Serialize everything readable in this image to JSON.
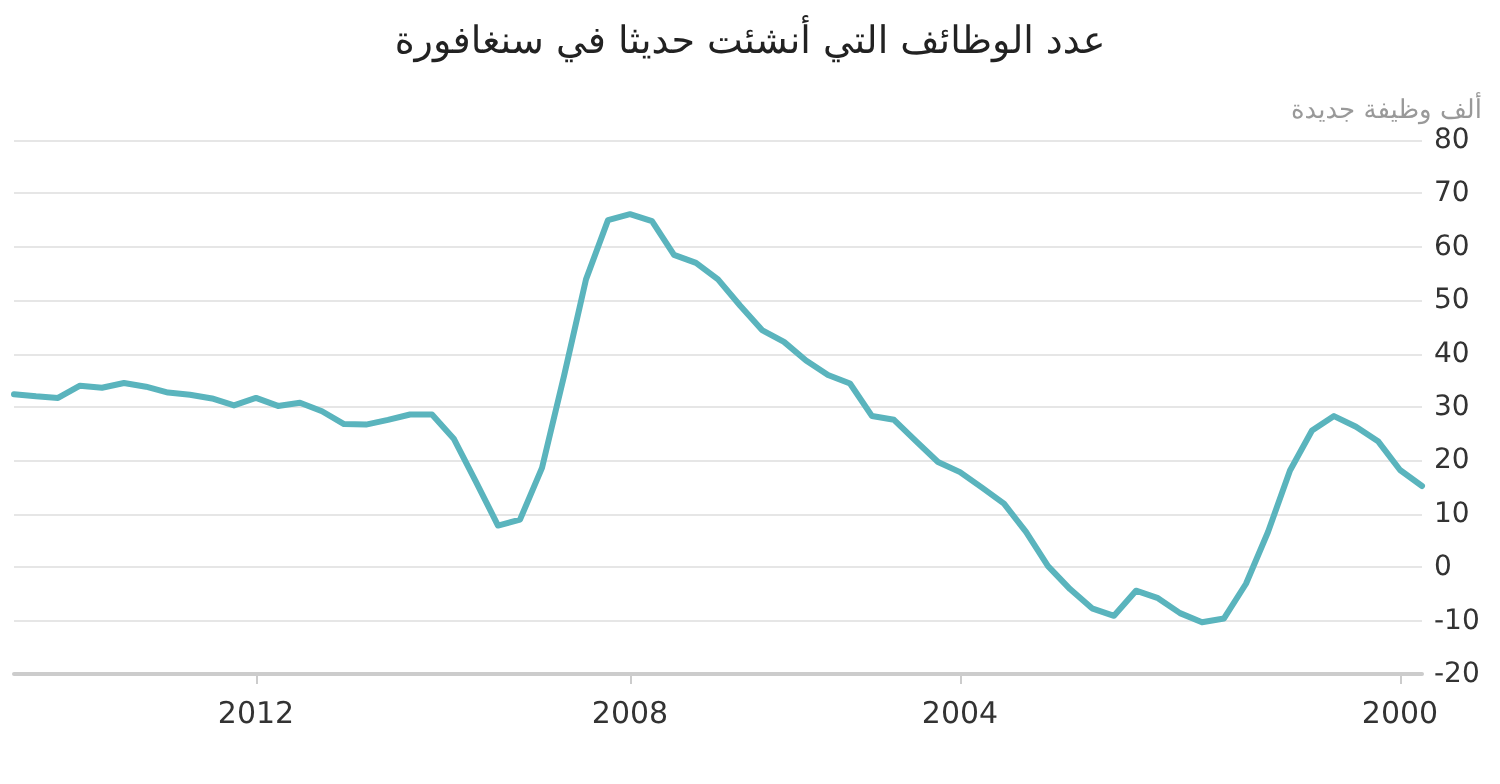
{
  "chart_data": {
    "type": "line",
    "title": "عدد الوظائف التي أنشئت حديثا في سنغافورة",
    "ylabel": "ألف وظيفة جديدة",
    "categories": [
      null,
      null,
      null,
      null,
      null,
      null,
      null,
      null,
      null,
      null,
      null,
      "2012",
      null,
      null,
      null,
      null,
      null,
      null,
      null,
      null,
      null,
      null,
      null,
      null,
      null,
      null,
      null,
      null,
      "2008",
      null,
      null,
      null,
      null,
      null,
      null,
      null,
      null,
      null,
      null,
      null,
      null,
      null,
      null,
      "2004",
      null,
      null,
      null,
      null,
      null,
      null,
      null,
      null,
      null,
      null,
      null,
      null,
      null,
      null,
      null,
      null,
      null,
      null,
      null,
      "2000",
      null
    ],
    "series": [
      {
        "color": "#5ab4bd",
        "values": [
          32.4,
          32,
          31.7,
          34,
          33.6,
          34.5,
          33.8,
          32.7,
          32.3,
          31.6,
          30.3,
          31.7,
          30.2,
          30.8,
          29.2,
          26.8,
          26.7,
          27.6,
          28.6,
          28.6,
          24,
          16,
          7.8,
          8.9,
          18.6,
          35.8,
          53.9,
          65,
          66.1,
          64.8,
          58.5,
          57,
          53.9,
          49,
          44.4,
          42.2,
          38.7,
          36,
          34.4,
          28.3,
          27.6,
          23.6,
          19.7,
          17.8,
          14.9,
          11.9,
          6.6,
          0.2,
          -4.1,
          -7.7,
          -9.1,
          -4.4,
          -5.8,
          -8.6,
          -10.3,
          -9.6,
          -3.1,
          6.6,
          18.1,
          25.6,
          28.3,
          26.3,
          23.6,
          18.2,
          15.2
        ]
      }
    ],
    "ylim": [
      -20,
      80
    ],
    "yticks": [
      -20,
      -10,
      0,
      10,
      20,
      30,
      40,
      50,
      60,
      70,
      80
    ],
    "grid": "y",
    "marker": "none",
    "line_style": "solid"
  }
}
